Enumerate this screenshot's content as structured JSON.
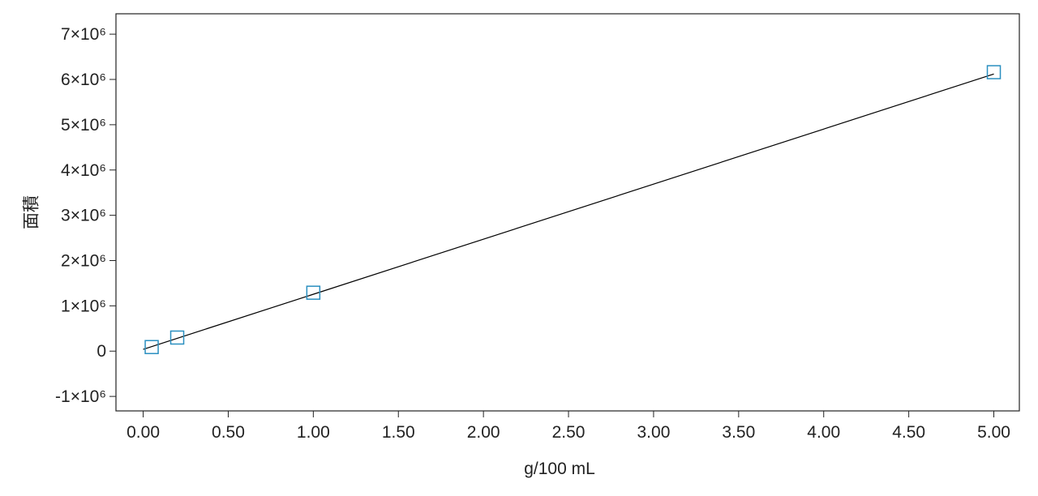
{
  "chart_data": {
    "type": "scatter",
    "xlabel": "g/100 mL",
    "ylabel": "面積",
    "xlim": [
      -0.16,
      5.15
    ],
    "ylim": [
      -1320000,
      7450000
    ],
    "xticks": [
      {
        "value": 0,
        "label": "0.00"
      },
      {
        "value": 0.5,
        "label": "0.50"
      },
      {
        "value": 1,
        "label": "1.00"
      },
      {
        "value": 1.5,
        "label": "1.50"
      },
      {
        "value": 2,
        "label": "2.00"
      },
      {
        "value": 2.5,
        "label": "2.50"
      },
      {
        "value": 3,
        "label": "3.00"
      },
      {
        "value": 3.5,
        "label": "3.50"
      },
      {
        "value": 4,
        "label": "4.00"
      },
      {
        "value": 4.5,
        "label": "4.50"
      },
      {
        "value": 5,
        "label": "5.00"
      }
    ],
    "yticks": [
      {
        "value": -1000000,
        "label": "-1×10⁶"
      },
      0,
      {
        "value": 1000000,
        "label": "1×10⁶"
      },
      {
        "value": 2000000,
        "label": "2×10⁶"
      },
      {
        "value": 3000000,
        "label": "3×10⁶"
      },
      {
        "value": 4000000,
        "label": "4×10⁶"
      },
      {
        "value": 5000000,
        "label": "5×10⁶"
      },
      {
        "value": 6000000,
        "label": "6×10⁶"
      },
      {
        "value": 7000000,
        "label": "7×10⁶"
      }
    ],
    "points": {
      "x": [
        0.05,
        0.2,
        1.0,
        5.0
      ],
      "values": [
        90000,
        300000,
        1290000,
        6160000
      ],
      "color": "#2a8fc0"
    },
    "fit_line": {
      "x": [
        0,
        5
      ],
      "values": [
        40000,
        6120000
      ],
      "color": "#000000"
    }
  }
}
